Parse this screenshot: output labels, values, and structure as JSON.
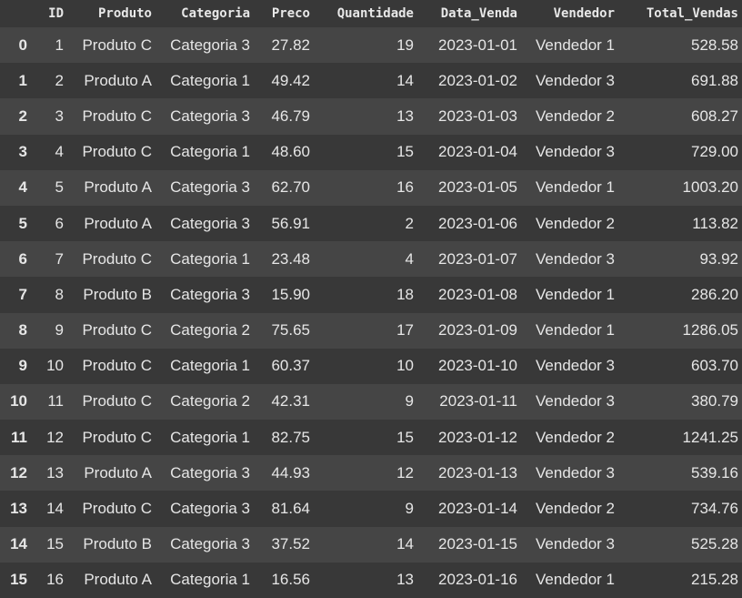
{
  "columns": [
    "",
    "ID",
    "Produto",
    "Categoria",
    "Preco",
    "Quantidade",
    "Data_Venda",
    "Vendedor",
    "Total_Vendas"
  ],
  "rows": [
    [
      "0",
      "1",
      "Produto C",
      "Categoria 3",
      "27.82",
      "19",
      "2023-01-01",
      "Vendedor 1",
      "528.58"
    ],
    [
      "1",
      "2",
      "Produto A",
      "Categoria 1",
      "49.42",
      "14",
      "2023-01-02",
      "Vendedor 3",
      "691.88"
    ],
    [
      "2",
      "3",
      "Produto C",
      "Categoria 3",
      "46.79",
      "13",
      "2023-01-03",
      "Vendedor 2",
      "608.27"
    ],
    [
      "3",
      "4",
      "Produto C",
      "Categoria 1",
      "48.60",
      "15",
      "2023-01-04",
      "Vendedor 3",
      "729.00"
    ],
    [
      "4",
      "5",
      "Produto A",
      "Categoria 3",
      "62.70",
      "16",
      "2023-01-05",
      "Vendedor 1",
      "1003.20"
    ],
    [
      "5",
      "6",
      "Produto A",
      "Categoria 3",
      "56.91",
      "2",
      "2023-01-06",
      "Vendedor 2",
      "113.82"
    ],
    [
      "6",
      "7",
      "Produto C",
      "Categoria 1",
      "23.48",
      "4",
      "2023-01-07",
      "Vendedor 3",
      "93.92"
    ],
    [
      "7",
      "8",
      "Produto B",
      "Categoria 3",
      "15.90",
      "18",
      "2023-01-08",
      "Vendedor 1",
      "286.20"
    ],
    [
      "8",
      "9",
      "Produto C",
      "Categoria 2",
      "75.65",
      "17",
      "2023-01-09",
      "Vendedor 1",
      "1286.05"
    ],
    [
      "9",
      "10",
      "Produto C",
      "Categoria 1",
      "60.37",
      "10",
      "2023-01-10",
      "Vendedor 3",
      "603.70"
    ],
    [
      "10",
      "11",
      "Produto C",
      "Categoria 2",
      "42.31",
      "9",
      "2023-01-11",
      "Vendedor 3",
      "380.79"
    ],
    [
      "11",
      "12",
      "Produto C",
      "Categoria 1",
      "82.75",
      "15",
      "2023-01-12",
      "Vendedor 2",
      "1241.25"
    ],
    [
      "12",
      "13",
      "Produto A",
      "Categoria 3",
      "44.93",
      "12",
      "2023-01-13",
      "Vendedor 3",
      "539.16"
    ],
    [
      "13",
      "14",
      "Produto C",
      "Categoria 3",
      "81.64",
      "9",
      "2023-01-14",
      "Vendedor 2",
      "734.76"
    ],
    [
      "14",
      "15",
      "Produto B",
      "Categoria 3",
      "37.52",
      "14",
      "2023-01-15",
      "Vendedor 3",
      "525.28"
    ],
    [
      "15",
      "16",
      "Produto A",
      "Categoria 1",
      "16.56",
      "13",
      "2023-01-16",
      "Vendedor 1",
      "215.28"
    ]
  ]
}
